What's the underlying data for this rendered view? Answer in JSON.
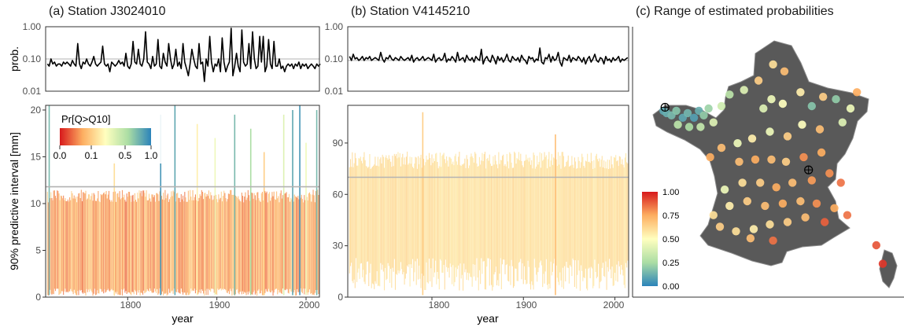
{
  "panels": {
    "a": {
      "title": "(a) Station J3024010"
    },
    "b": {
      "title": "(b) Station V4145210"
    },
    "c": {
      "title": "(c) Range of estimated probabilities"
    }
  },
  "axes": {
    "prob_label": "prob.",
    "prob_ticks": [
      "1.00",
      "0.10",
      "0.01"
    ],
    "interval_label": "90% predictive interval [mm]",
    "x_label": "year",
    "year_ticks": [
      "1800",
      "1900",
      "2000"
    ]
  },
  "legend_a": {
    "title": "Pr[Q>Q10]",
    "ticks": [
      "0.0",
      "0.1",
      "0.5",
      "1.0"
    ]
  },
  "legend_c": {
    "ticks": [
      "1.00",
      "0.75",
      "0.50",
      "0.25",
      "0.00"
    ]
  },
  "colors": {
    "scale": [
      "#d7191c",
      "#fdae61",
      "#ffffbf",
      "#abdda4",
      "#2b83ba"
    ],
    "panel_border": "#333333",
    "ref_line": "#b3b3b3",
    "map_fill": "#595959"
  },
  "chart_data": [
    {
      "type": "line",
      "panel": "a-top",
      "ylabel": "prob.",
      "yscale": "log",
      "ylim": [
        0.01,
        1.0
      ],
      "xlim": [
        1708,
        2015
      ],
      "reference_value": 0.1,
      "series": [
        {
          "x_start": 1710,
          "x_step": 2,
          "values": [
            0.07,
            0.06,
            0.1,
            0.07,
            0.08,
            0.06,
            0.07,
            0.07,
            0.06,
            0.08,
            0.07,
            0.08,
            0.07,
            0.06,
            0.09,
            0.07,
            0.06,
            0.3,
            0.07,
            0.05,
            0.08,
            0.07,
            0.1,
            0.07,
            0.06,
            0.08,
            0.12,
            0.07,
            0.06,
            0.07,
            0.08,
            0.25,
            0.07,
            0.06,
            0.07,
            0.04,
            0.08,
            0.07,
            0.06,
            0.07,
            0.09,
            0.07,
            0.08,
            0.06,
            0.15,
            0.06,
            0.05,
            0.07,
            0.35,
            0.08,
            0.07,
            0.2,
            0.07,
            0.06,
            0.1,
            0.7,
            0.08,
            0.07,
            0.05,
            0.12,
            0.06,
            0.07,
            0.4,
            0.06,
            0.05,
            0.15,
            0.08,
            0.06,
            0.3,
            0.1,
            0.05,
            0.07,
            0.2,
            0.06,
            0.08,
            0.05,
            0.3,
            0.08,
            0.05,
            0.03,
            0.07,
            0.2,
            0.1,
            0.06,
            0.05,
            0.3,
            0.07,
            0.08,
            0.02,
            0.1,
            0.06,
            0.5,
            0.08,
            0.04,
            0.07,
            0.06,
            0.1,
            0.04,
            0.45,
            0.08,
            0.04,
            0.06,
            0.08,
            0.9,
            0.03,
            0.06,
            0.15,
            0.06,
            0.04,
            0.8,
            0.08,
            0.06,
            0.07,
            0.3,
            0.05,
            0.7,
            0.1,
            0.05,
            0.06,
            0.5,
            0.08,
            0.5,
            0.04,
            0.06,
            0.4,
            0.07,
            0.05,
            0.35,
            0.06,
            0.06,
            0.1,
            0.05,
            0.06,
            0.04,
            0.06,
            0.07,
            0.06,
            0.07,
            0.05,
            0.07,
            0.06,
            0.08,
            0.05,
            0.07,
            0.06,
            0.07,
            0.05,
            0.06,
            0.07,
            0.06,
            0.05,
            0.07,
            0.06,
            0.07
          ]
        }
      ]
    },
    {
      "type": "line",
      "panel": "b-top",
      "yscale": "log",
      "ylim": [
        0.01,
        1.0
      ],
      "xlim": [
        1708,
        2015
      ],
      "reference_value": 0.09,
      "series": [
        {
          "x_start": 1710,
          "x_step": 2,
          "values": [
            0.12,
            0.09,
            0.14,
            0.1,
            0.11,
            0.09,
            0.1,
            0.12,
            0.09,
            0.11,
            0.1,
            0.12,
            0.09,
            0.1,
            0.11,
            0.1,
            0.09,
            0.16,
            0.1,
            0.08,
            0.11,
            0.1,
            0.13,
            0.1,
            0.09,
            0.11,
            0.1,
            0.09,
            0.12,
            0.1,
            0.09,
            0.1,
            0.11,
            0.09,
            0.13,
            0.08,
            0.1,
            0.11,
            0.09,
            0.1,
            0.12,
            0.09,
            0.1,
            0.11,
            0.1,
            0.09,
            0.14,
            0.08,
            0.1,
            0.11,
            0.09,
            0.1,
            0.15,
            0.08,
            0.1,
            0.09,
            0.12,
            0.1,
            0.08,
            0.16,
            0.09,
            0.1,
            0.11,
            0.08,
            0.13,
            0.1,
            0.09,
            0.11,
            0.08,
            0.12,
            0.1,
            0.09,
            0.2,
            0.07,
            0.1,
            0.12,
            0.09,
            0.08,
            0.13,
            0.1,
            0.07,
            0.12,
            0.09,
            0.11,
            0.08,
            0.1,
            0.14,
            0.09,
            0.08,
            0.12,
            0.1,
            0.09,
            0.11,
            0.08,
            0.13,
            0.1,
            0.09,
            0.07,
            0.12,
            0.1,
            0.11,
            0.08,
            0.1,
            0.09,
            0.22,
            0.08,
            0.07,
            0.11,
            0.1,
            0.14,
            0.08,
            0.12,
            0.09,
            0.1,
            0.16,
            0.08,
            0.06,
            0.11,
            0.1,
            0.09,
            0.13,
            0.08,
            0.11,
            0.1,
            0.09,
            0.12,
            0.1,
            0.08,
            0.11,
            0.07,
            0.1,
            0.12,
            0.08,
            0.1,
            0.14,
            0.09,
            0.08,
            0.11,
            0.1,
            0.07,
            0.12,
            0.09,
            0.1,
            0.08,
            0.11,
            0.09,
            0.1,
            0.12,
            0.08,
            0.1,
            0.09,
            0.1,
            0.11
          ]
        }
      ]
    },
    {
      "type": "bar",
      "panel": "a-bottom",
      "ylabel": "90% predictive interval [mm]",
      "xlabel": "year",
      "xlim": [
        1708,
        2015
      ],
      "ylim": [
        0,
        20.5
      ],
      "yticks": [
        0,
        5,
        10,
        15,
        20
      ],
      "reference_value": 11.8,
      "bars": {
        "x_start": 1710,
        "x_step": 1,
        "count": 305,
        "typical_lower": 0.5,
        "typical_upper": 11.5
      },
      "tall_bars": [
        {
          "x": 1712,
          "upper": 20.5,
          "p": 0.85
        },
        {
          "x": 1785,
          "upper": 14.5,
          "p": 0.4
        },
        {
          "x": 1837,
          "upper": 19.5,
          "p": 0.95
        },
        {
          "x": 1853,
          "upper": 20.5,
          "p": 0.9
        },
        {
          "x": 1878,
          "upper": 18.5,
          "p": 0.45
        },
        {
          "x": 1898,
          "upper": 17.0,
          "p": 0.55
        },
        {
          "x": 1920,
          "upper": 19.5,
          "p": 0.85
        },
        {
          "x": 1938,
          "upper": 18.0,
          "p": 0.75
        },
        {
          "x": 1953,
          "upper": 15.5,
          "p": 0.35
        },
        {
          "x": 1975,
          "upper": 19.5,
          "p": 0.6
        },
        {
          "x": 1985,
          "upper": 20.0,
          "p": 0.9
        },
        {
          "x": 1993,
          "upper": 20.5,
          "p": 0.95
        },
        {
          "x": 2000,
          "upper": 16.5,
          "p": 0.55
        },
        {
          "x": 2012,
          "upper": 20.0,
          "p": 0.85
        }
      ]
    },
    {
      "type": "bar",
      "panel": "b-bottom",
      "xlabel": "year",
      "xlim": [
        1708,
        2015
      ],
      "ylim": [
        0,
        112
      ],
      "yticks": [
        0,
        30,
        60,
        90
      ],
      "reference_value": 70,
      "bars": {
        "x_start": 1710,
        "x_step": 1,
        "count": 305,
        "typical_lower": 12,
        "typical_upper": 85
      },
      "tall_bars": [
        {
          "x": 1790,
          "upper": 108,
          "p": 0.35
        },
        {
          "x": 1935,
          "upper": 95,
          "p": 0.3
        }
      ]
    },
    {
      "type": "scatter",
      "panel": "c",
      "legend_range": [
        0,
        1
      ],
      "legend_ticks": [
        0.0,
        0.25,
        0.5,
        0.75,
        1.0
      ],
      "legend_placement": "bottom-left",
      "points": [
        {
          "lon": -4.4,
          "lat": 48.4,
          "p": 0.9
        },
        {
          "lon": -4.2,
          "lat": 48.3,
          "p": 0.88
        },
        {
          "lon": -3.9,
          "lat": 48.2,
          "p": 0.85
        },
        {
          "lon": -3.6,
          "lat": 48.4,
          "p": 0.82
        },
        {
          "lon": -3.2,
          "lat": 48.1,
          "p": 0.9
        },
        {
          "lon": -2.9,
          "lat": 48.3,
          "p": 0.86
        },
        {
          "lon": -2.5,
          "lat": 48.1,
          "p": 0.92
        },
        {
          "lon": -2.2,
          "lat": 48.4,
          "p": 0.88
        },
        {
          "lon": -1.9,
          "lat": 48.2,
          "p": 0.8
        },
        {
          "lon": -1.6,
          "lat": 48.5,
          "p": 0.78
        },
        {
          "lon": -3.5,
          "lat": 47.8,
          "p": 0.7
        },
        {
          "lon": -2.8,
          "lat": 47.7,
          "p": 0.75
        },
        {
          "lon": -2.1,
          "lat": 47.7,
          "p": 0.68
        },
        {
          "lon": -1.3,
          "lat": 47.9,
          "p": 0.6
        },
        {
          "lon": -0.8,
          "lat": 48.6,
          "p": 0.65
        },
        {
          "lon": -0.3,
          "lat": 49.1,
          "p": 0.7
        },
        {
          "lon": 0.6,
          "lat": 49.3,
          "p": 0.6
        },
        {
          "lon": 1.5,
          "lat": 49.7,
          "p": 0.35
        },
        {
          "lon": 2.4,
          "lat": 50.4,
          "p": 0.4
        },
        {
          "lon": 3.1,
          "lat": 50.1,
          "p": 0.3
        },
        {
          "lon": 2.3,
          "lat": 48.9,
          "p": 0.55
        },
        {
          "lon": 1.8,
          "lat": 48.5,
          "p": 0.6
        },
        {
          "lon": 3.0,
          "lat": 48.7,
          "p": 0.5
        },
        {
          "lon": 4.1,
          "lat": 49.2,
          "p": 0.45
        },
        {
          "lon": 4.8,
          "lat": 48.6,
          "p": 0.82
        },
        {
          "lon": 5.5,
          "lat": 49.0,
          "p": 0.35
        },
        {
          "lon": 6.3,
          "lat": 48.9,
          "p": 0.8
        },
        {
          "lon": 7.2,
          "lat": 48.5,
          "p": 0.55
        },
        {
          "lon": 7.6,
          "lat": 49.2,
          "p": 0.25
        },
        {
          "lon": 6.7,
          "lat": 47.9,
          "p": 0.6
        },
        {
          "lon": 5.3,
          "lat": 47.6,
          "p": 0.3
        },
        {
          "lon": 4.2,
          "lat": 47.8,
          "p": 0.5
        },
        {
          "lon": 3.3,
          "lat": 47.3,
          "p": 0.35
        },
        {
          "lon": 2.2,
          "lat": 47.5,
          "p": 0.55
        },
        {
          "lon": 1.1,
          "lat": 47.2,
          "p": 0.45
        },
        {
          "lon": 0.2,
          "lat": 47.0,
          "p": 0.55
        },
        {
          "lon": -0.8,
          "lat": 46.8,
          "p": 0.3
        },
        {
          "lon": -1.5,
          "lat": 46.4,
          "p": 0.25
        },
        {
          "lon": 0.3,
          "lat": 46.2,
          "p": 0.3
        },
        {
          "lon": 1.3,
          "lat": 46.3,
          "p": 0.25
        },
        {
          "lon": 2.3,
          "lat": 46.3,
          "p": 0.3
        },
        {
          "lon": 3.2,
          "lat": 46.2,
          "p": 0.35
        },
        {
          "lon": 4.3,
          "lat": 46.4,
          "p": 0.2
        },
        {
          "lon": 5.4,
          "lat": 46.6,
          "p": 0.25
        },
        {
          "lon": 5.9,
          "lat": 45.7,
          "p": 0.2
        },
        {
          "lon": 6.6,
          "lat": 45.3,
          "p": 0.15
        },
        {
          "lon": 4.8,
          "lat": 45.4,
          "p": 0.22
        },
        {
          "lon": 3.6,
          "lat": 45.3,
          "p": 0.3
        },
        {
          "lon": 2.6,
          "lat": 45.1,
          "p": 0.25
        },
        {
          "lon": 1.6,
          "lat": 45.3,
          "p": 0.35
        },
        {
          "lon": 0.5,
          "lat": 45.3,
          "p": 0.4
        },
        {
          "lon": -0.6,
          "lat": 45.0,
          "p": 0.55
        },
        {
          "lon": -0.3,
          "lat": 44.3,
          "p": 0.45
        },
        {
          "lon": 0.8,
          "lat": 44.5,
          "p": 0.35
        },
        {
          "lon": 1.9,
          "lat": 44.3,
          "p": 0.3
        },
        {
          "lon": 3.0,
          "lat": 44.4,
          "p": 0.25
        },
        {
          "lon": 4.1,
          "lat": 44.5,
          "p": 0.3
        },
        {
          "lon": 5.1,
          "lat": 44.4,
          "p": 0.2
        },
        {
          "lon": 6.2,
          "lat": 44.2,
          "p": 0.25
        },
        {
          "lon": 7.0,
          "lat": 43.9,
          "p": 0.15
        },
        {
          "lon": 5.6,
          "lat": 43.6,
          "p": 0.12
        },
        {
          "lon": 4.4,
          "lat": 43.8,
          "p": 0.3
        },
        {
          "lon": 3.3,
          "lat": 43.6,
          "p": 0.35
        },
        {
          "lon": 2.2,
          "lat": 43.5,
          "p": 0.4
        },
        {
          "lon": 1.2,
          "lat": 43.3,
          "p": 0.45
        },
        {
          "lon": 0.1,
          "lat": 43.2,
          "p": 0.4
        },
        {
          "lon": -0.9,
          "lat": 43.4,
          "p": 0.35
        },
        {
          "lon": -1.3,
          "lat": 43.9,
          "p": 0.4
        },
        {
          "lon": 1.0,
          "lat": 42.9,
          "p": 0.3
        },
        {
          "lon": 2.4,
          "lat": 42.8,
          "p": 0.15
        },
        {
          "lon": 8.8,
          "lat": 42.6,
          "p": 0.1
        },
        {
          "lon": 9.2,
          "lat": 41.8,
          "p": 0.05
        }
      ],
      "markers": [
        {
          "lon": -4.3,
          "lat": 48.55
        },
        {
          "lon": 4.6,
          "lat": 45.85
        }
      ]
    }
  ]
}
